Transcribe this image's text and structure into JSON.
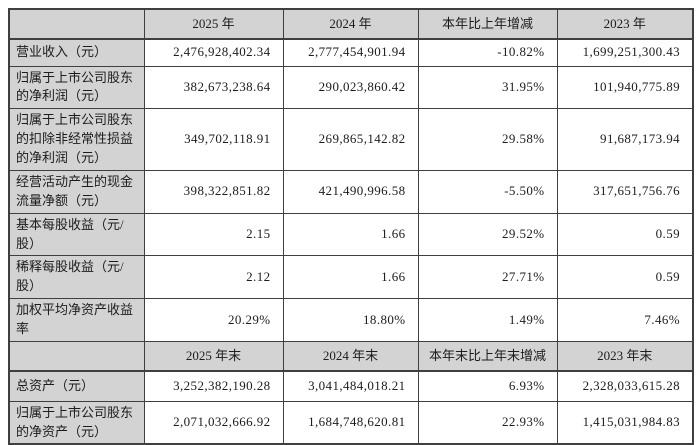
{
  "colors": {
    "header_bg": "#d3d3d3",
    "label_bg": "#d3d3d3",
    "cell_bg": "#ffffff",
    "border": "#3f3f3f",
    "text": "#1c1c1c"
  },
  "sections": [
    {
      "corner": "",
      "columns": [
        "2025 年",
        "2024 年",
        "本年比上年增减",
        "2023 年"
      ],
      "rows": [
        {
          "label": "营业收入（元）",
          "values": [
            "2,476,928,402.34",
            "2,777,454,901.94",
            "-10.82%",
            "1,699,251,300.43"
          ]
        },
        {
          "label": "归属于上市公司股东的净利润（元）",
          "values": [
            "382,673,238.64",
            "290,023,860.42",
            "31.95%",
            "101,940,775.89"
          ]
        },
        {
          "label": "归属于上市公司股东的扣除非经常性损益的净利润（元）",
          "values": [
            "349,702,118.91",
            "269,865,142.82",
            "29.58%",
            "91,687,173.94"
          ]
        },
        {
          "label": "经营活动产生的现金流量净额（元）",
          "values": [
            "398,322,851.82",
            "421,490,996.58",
            "-5.50%",
            "317,651,756.76"
          ]
        },
        {
          "label": "基本每股收益（元/股）",
          "values": [
            "2.15",
            "1.66",
            "29.52%",
            "0.59"
          ]
        },
        {
          "label": "稀释每股收益（元/股）",
          "values": [
            "2.12",
            "1.66",
            "27.71%",
            "0.59"
          ]
        },
        {
          "label": "加权平均净资产收益率",
          "values": [
            "20.29%",
            "18.80%",
            "1.49%",
            "7.46%"
          ]
        }
      ]
    },
    {
      "corner": "",
      "columns": [
        "2025 年末",
        "2024 年末",
        "本年末比上年末增减",
        "2023 年末"
      ],
      "rows": [
        {
          "label": "总资产（元）",
          "values": [
            "3,252,382,190.28",
            "3,041,484,018.21",
            "6.93%",
            "2,328,033,615.28"
          ]
        },
        {
          "label": "归属于上市公司股东的净资产（元）",
          "values": [
            "2,071,032,666.92",
            "1,684,748,620.81",
            "22.93%",
            "1,415,031,984.83"
          ]
        }
      ]
    }
  ]
}
